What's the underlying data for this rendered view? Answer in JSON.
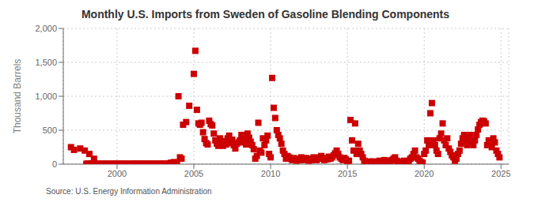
{
  "chart_data": {
    "type": "scatter",
    "title": "Monthly U.S. Imports from Sweden of Gasoline Blending Components",
    "y_label": "Thousand Barrels",
    "annotations": [
      "Source: U.S. Energy Information Administration"
    ],
    "color": "#cc0000",
    "marker": "square",
    "grid": true,
    "xlim": [
      1996.5,
      2025.5
    ],
    "xticks": [
      2000,
      2005,
      2010,
      2015,
      2020,
      2025
    ],
    "ylim": [
      0,
      2000
    ],
    "yticks": [
      0,
      500,
      {
        "value": 1000,
        "label": "1,000"
      },
      {
        "value": 1500,
        "label": "1,500"
      },
      {
        "value": 2000,
        "label": "2,000"
      }
    ],
    "x": [
      1997.0,
      1997.2,
      1997.6,
      1997.9,
      1998.2,
      1998.5,
      1998.0,
      1998.1,
      1998.2,
      1998.3,
      1998.4,
      1998.5,
      1998.6,
      1998.7,
      1998.8,
      1998.9,
      1999.0,
      1999.1,
      1999.2,
      1999.3,
      1999.4,
      1999.5,
      1999.6,
      1999.7,
      1999.8,
      1999.9,
      2000.0,
      2000.1,
      2000.2,
      2000.3,
      2000.4,
      2000.5,
      2000.6,
      2000.7,
      2000.8,
      2000.9,
      2001.0,
      2001.1,
      2001.2,
      2001.3,
      2001.4,
      2001.5,
      2001.6,
      2001.7,
      2001.8,
      2001.9,
      2002.0,
      2002.1,
      2002.2,
      2002.3,
      2002.4,
      2002.5,
      2002.6,
      2002.7,
      2002.8,
      2002.9,
      2003.0,
      2003.1,
      2003.2,
      2003.3,
      2003.4,
      2003.5,
      2003.6,
      2003.7,
      2003.8,
      2003.9,
      2004.0,
      2004.1,
      2004.2,
      2004.3,
      2004.5,
      2004.7,
      2005.0,
      2005.1,
      2005.2,
      2005.3,
      2005.4,
      2005.5,
      2005.6,
      2005.7,
      2005.8,
      2005.9,
      2006.0,
      2006.1,
      2006.2,
      2006.3,
      2006.4,
      2006.5,
      2006.6,
      2006.7,
      2006.8,
      2006.9,
      2007.0,
      2007.1,
      2007.2,
      2007.3,
      2007.4,
      2007.5,
      2007.6,
      2007.7,
      2007.8,
      2007.9,
      2008.0,
      2008.1,
      2008.2,
      2008.3,
      2008.4,
      2008.5,
      2008.6,
      2008.7,
      2008.8,
      2008.9,
      2009.0,
      2009.1,
      2009.2,
      2009.3,
      2009.4,
      2009.5,
      2009.6,
      2009.7,
      2009.8,
      2009.9,
      2010.0,
      2010.1,
      2010.2,
      2010.3,
      2010.4,
      2010.5,
      2010.6,
      2010.7,
      2010.8,
      2010.9,
      2011.0,
      2011.1,
      2011.2,
      2011.3,
      2011.4,
      2011.5,
      2011.6,
      2011.7,
      2011.8,
      2011.9,
      2012.0,
      2012.1,
      2012.2,
      2012.3,
      2012.4,
      2012.5,
      2012.6,
      2012.7,
      2012.8,
      2012.9,
      2013.0,
      2013.1,
      2013.2,
      2013.3,
      2013.4,
      2013.5,
      2013.6,
      2013.7,
      2013.8,
      2013.9,
      2014.0,
      2014.1,
      2014.2,
      2014.3,
      2014.4,
      2014.5,
      2014.6,
      2014.7,
      2014.8,
      2014.9,
      2015.0,
      2015.1,
      2015.2,
      2015.3,
      2015.4,
      2015.5,
      2015.6,
      2015.7,
      2015.8,
      2015.9,
      2016.0,
      2016.1,
      2016.2,
      2016.3,
      2016.4,
      2016.5,
      2016.6,
      2016.7,
      2016.8,
      2016.9,
      2017.0,
      2017.1,
      2017.2,
      2017.3,
      2017.4,
      2017.5,
      2017.6,
      2017.7,
      2017.8,
      2017.9,
      2018.0,
      2018.1,
      2018.2,
      2018.3,
      2018.4,
      2018.5,
      2018.6,
      2018.7,
      2018.8,
      2018.9,
      2019.0,
      2019.1,
      2019.2,
      2019.3,
      2019.4,
      2019.5,
      2019.6,
      2019.7,
      2019.8,
      2019.9,
      2020.0,
      2020.1,
      2020.2,
      2020.3,
      2020.4,
      2020.5,
      2020.6,
      2020.7,
      2020.8,
      2020.9,
      2021.0,
      2021.1,
      2021.2,
      2021.3,
      2021.4,
      2021.5,
      2021.6,
      2021.7,
      2021.8,
      2021.9,
      2022.0,
      2022.1,
      2022.2,
      2022.3,
      2022.4,
      2022.5,
      2022.6,
      2022.7,
      2022.8,
      2022.9,
      2023.0,
      2023.1,
      2023.2,
      2023.3,
      2023.4,
      2023.5,
      2023.6,
      2023.7,
      2023.8,
      2023.9,
      2024.0,
      2024.1,
      2024.2,
      2024.3,
      2024.4,
      2024.5,
      2024.6,
      2024.7,
      2024.8,
      2024.9
    ],
    "values": [
      250,
      210,
      230,
      200,
      150,
      80,
      5,
      8,
      3,
      5,
      8,
      5,
      3,
      6,
      5,
      4,
      3,
      5,
      4,
      6,
      3,
      5,
      4,
      5,
      3,
      6,
      5,
      4,
      3,
      6,
      5,
      3,
      5,
      4,
      5,
      3,
      5,
      4,
      6,
      5,
      3,
      6,
      5,
      3,
      5,
      6,
      4,
      5,
      3,
      6,
      5,
      3,
      5,
      4,
      6,
      5,
      4,
      5,
      3,
      6,
      5,
      20,
      15,
      30,
      10,
      25,
      1000,
      100,
      80,
      580,
      620,
      860,
      1330,
      1670,
      800,
      600,
      580,
      610,
      470,
      370,
      310,
      290,
      640,
      590,
      570,
      450,
      350,
      300,
      270,
      380,
      320,
      270,
      340,
      290,
      380,
      420,
      310,
      360,
      280,
      230,
      300,
      320,
      350,
      430,
      380,
      320,
      290,
      450,
      390,
      330,
      280,
      220,
      80,
      120,
      610,
      200,
      170,
      380,
      280,
      350,
      420,
      150,
      100,
      1270,
      830,
      680,
      500,
      430,
      380,
      300,
      200,
      150,
      80,
      120,
      100,
      80,
      60,
      90,
      70,
      50,
      80,
      60,
      100,
      80,
      60,
      90,
      70,
      50,
      80,
      60,
      100,
      80,
      60,
      80,
      100,
      120,
      80,
      60,
      90,
      70,
      110,
      80,
      100,
      130,
      160,
      200,
      150,
      100,
      80,
      60,
      90,
      70,
      30,
      50,
      650,
      350,
      200,
      600,
      150,
      300,
      200,
      150,
      100,
      50,
      30,
      20,
      40,
      30,
      20,
      40,
      30,
      20,
      30,
      50,
      40,
      30,
      60,
      50,
      40,
      30,
      50,
      60,
      80,
      100,
      50,
      30,
      20,
      40,
      30,
      50,
      40,
      30,
      50,
      80,
      100,
      150,
      200,
      100,
      80,
      50,
      30,
      20,
      150,
      200,
      350,
      280,
      750,
      900,
      350,
      280,
      200,
      150,
      380,
      450,
      600,
      350,
      280,
      380,
      230,
      180,
      130,
      100,
      50,
      80,
      150,
      200,
      300,
      380,
      430,
      350,
      280,
      380,
      430,
      320,
      280,
      350,
      430,
      510,
      580,
      620,
      640,
      630,
      600,
      280,
      350,
      300,
      250,
      380,
      320,
      200,
      150,
      100
    ]
  }
}
